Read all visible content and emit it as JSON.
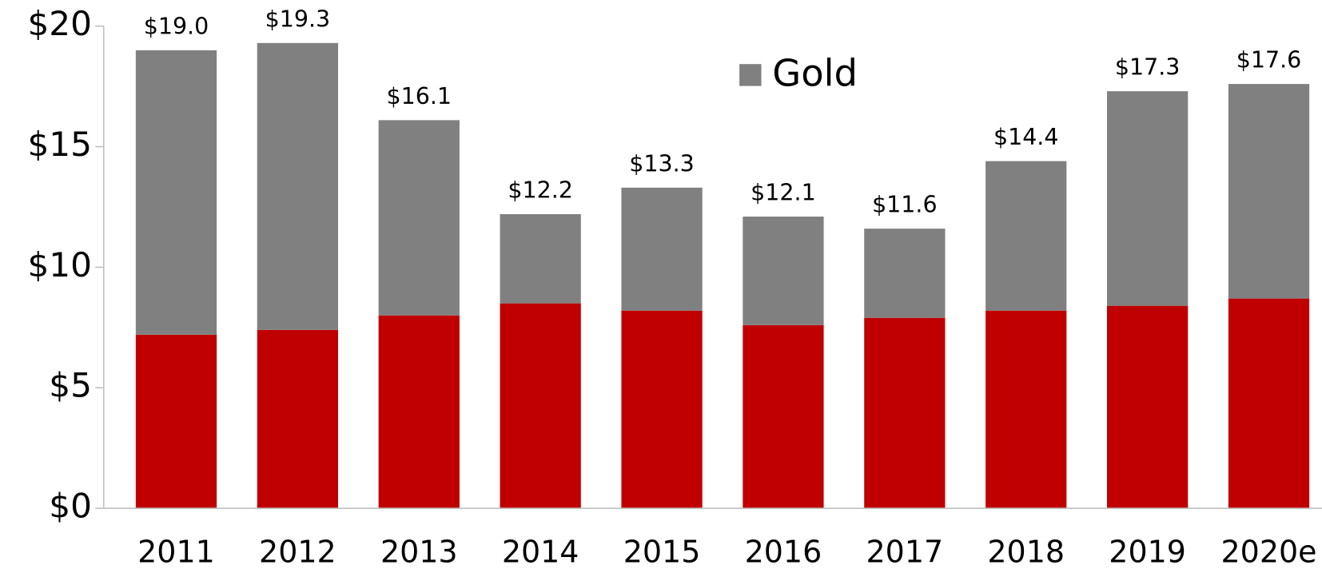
{
  "chart_data": {
    "type": "stacked-bar",
    "categories": [
      "2011",
      "2012",
      "2013",
      "2014",
      "2015",
      "2016",
      "2017",
      "2018",
      "2019",
      "2020e"
    ],
    "series": [
      {
        "color": "#c00000",
        "values": [
          7.2,
          7.4,
          8.0,
          8.5,
          8.2,
          7.6,
          7.9,
          8.2,
          8.4,
          8.7
        ]
      },
      {
        "name": "Gold",
        "color": "#808080",
        "values": [
          11.8,
          11.9,
          8.1,
          3.7,
          5.1,
          4.5,
          3.7,
          6.2,
          8.9,
          8.9
        ]
      }
    ],
    "totals": [
      19.0,
      19.3,
      16.1,
      12.2,
      13.3,
      12.1,
      11.6,
      14.4,
      17.3,
      17.6
    ],
    "total_labels": [
      "$19.0",
      "$19.3",
      "$16.1",
      "$12.2",
      "$13.3",
      "$12.1",
      "$11.6",
      "$14.4",
      "$17.3",
      "$17.6"
    ],
    "ylim": [
      0,
      20
    ],
    "yticks": [
      {
        "value": 0,
        "label": "$0"
      },
      {
        "value": 5,
        "label": "$5"
      },
      {
        "value": 10,
        "label": "$10"
      },
      {
        "value": 15,
        "label": "$15"
      },
      {
        "value": 20,
        "label": "$20"
      }
    ],
    "legend": "top"
  }
}
